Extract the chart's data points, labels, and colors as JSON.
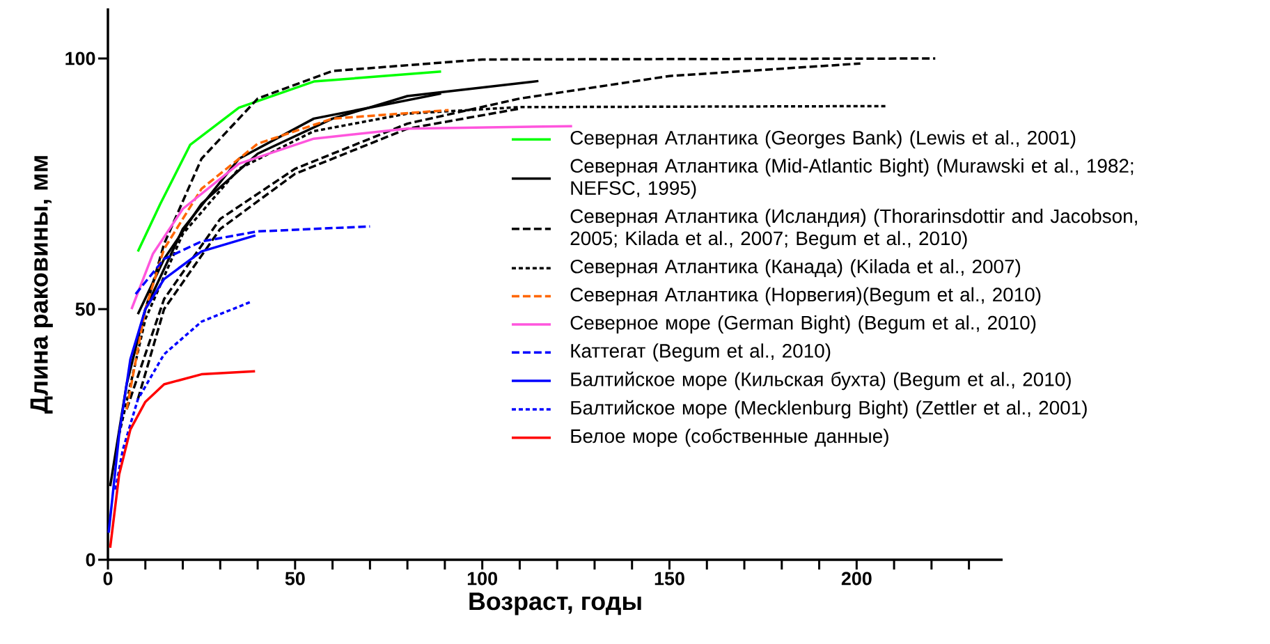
{
  "chart_data": {
    "type": "line",
    "xlabel": "Возраст, годы",
    "ylabel": "Длина раковины, мм",
    "xlim": [
      0,
      239
    ],
    "ylim": [
      0,
      110
    ],
    "xticks": [
      0,
      {
        "value": 10,
        "label": null
      },
      {
        "value": 20,
        "label": null
      },
      {
        "value": 30,
        "label": null
      },
      {
        "value": 40,
        "label": null
      },
      50,
      {
        "value": 60,
        "label": null
      },
      {
        "value": 70,
        "label": null
      },
      {
        "value": 80,
        "label": null
      },
      {
        "value": 90,
        "label": null
      },
      100,
      {
        "value": 110,
        "label": null
      },
      {
        "value": 120,
        "label": null
      },
      {
        "value": 130,
        "label": null
      },
      {
        "value": 140,
        "label": null
      },
      150,
      {
        "value": 160,
        "label": null
      },
      {
        "value": 170,
        "label": null
      },
      {
        "value": 180,
        "label": null
      },
      {
        "value": 190,
        "label": null
      },
      200,
      {
        "value": 210,
        "label": null
      },
      {
        "value": 220,
        "label": null
      },
      {
        "value": 230,
        "label": null
      }
    ],
    "yticks": [
      0,
      50,
      100
    ],
    "grid": false,
    "legend": "right",
    "marker": "none",
    "series": [
      {
        "name": "Северная Атлантика (Georges Bank) (Lewis et al., 2001)",
        "color": "#00ff00",
        "line_style": "solid",
        "x": [
          8,
          14,
          22,
          35,
          55,
          89
        ],
        "values": [
          61.5,
          71,
          82.8,
          90.2,
          95.4,
          97.4
        ]
      },
      {
        "name": "Северная Атлантика (Mid-Atlantic Bight) (Murawski et al., 1982; NEFSC, 1995)",
        "color": "#000000",
        "line_style": "solid",
        "x": [
          8,
          15,
          25,
          40,
          60,
          80,
          115
        ],
        "values": [
          49,
          60,
          71,
          81,
          88,
          92.5,
          95.5
        ]
      },
      {
        "name": "Северная Атлантика (Исландия) (Thorarinsdottir and Jacobson, 2005; Kilada et al., 2007; Begum et al., 2010)",
        "color": "#000000",
        "line_style": "dashed",
        "x": [
          7,
          15,
          25,
          40,
          60,
          100,
          221
        ],
        "values": [
          42,
          63,
          80,
          92,
          97.5,
          99.8,
          100
        ]
      },
      {
        "name": "Северная Атлантика (Канада) (Kilada et al., 2007)",
        "color": "#000000",
        "line_style": "dotted",
        "x": [
          3,
          10,
          20,
          35,
          55,
          80,
          110,
          208
        ],
        "values": [
          25,
          48,
          65,
          78,
          85.5,
          89,
          90.3,
          90.5
        ]
      },
      {
        "name": "Северная Атлантика (Норвегия)(Begum et al., 2010)",
        "color": "#ff6600",
        "line_style": "dashed",
        "x": [
          5,
          10,
          15,
          25,
          40,
          60,
          91
        ],
        "values": [
          30,
          50,
          62,
          74,
          83,
          88,
          89.7
        ]
      },
      {
        "name": "Северное море (German Bight) (Begum et al., 2010)",
        "color": "#ff55dd",
        "line_style": "solid",
        "x": [
          6.3,
          12,
          20,
          35,
          55,
          80,
          124
        ],
        "values": [
          50,
          61,
          70,
          79,
          84,
          86,
          86.5
        ]
      },
      {
        "name": "Каттегат (Begum et al., 2010)",
        "color": "#0000ff",
        "line_style": "dashed",
        "x": [
          7.4,
          15,
          25,
          40,
          70
        ],
        "values": [
          53,
          60,
          63.5,
          65.5,
          66.5
        ]
      },
      {
        "name": "Балтийское море (Кильская бухта) (Begum et al., 2010)",
        "color": "#0000ff",
        "line_style": "solid",
        "x": [
          0.2,
          3,
          6,
          10,
          15,
          25,
          39.4
        ],
        "values": [
          5.4,
          25,
          40,
          50,
          56,
          61.5,
          64.7
        ]
      },
      {
        "name": "Балтийское море (Mecklenburg Bight) (Zettler et al., 2001)",
        "color": "#0000ff",
        "line_style": "dotted",
        "x": [
          2,
          4,
          8,
          15,
          25,
          38.3
        ],
        "values": [
          14,
          22,
          32,
          41,
          47.5,
          51.5
        ]
      },
      {
        "name": "Белое море (собственные данные)",
        "color": "#ff0000",
        "line_style": "solid",
        "x": [
          0.6,
          3,
          6,
          10,
          15,
          25,
          39.3
        ],
        "values": [
          2.4,
          17,
          26,
          31.5,
          35,
          37,
          37.6
        ]
      },
      {
        "color": "#000000",
        "line_style": "solid",
        "x": [
          0.6,
          5,
          10,
          20,
          35,
          55,
          89
        ],
        "values": [
          14.7,
          35,
          50,
          66,
          80,
          88,
          93
        ]
      },
      {
        "color": "#000000",
        "line_style": "dashed",
        "x": [
          5,
          15,
          30,
          50,
          80,
          110,
          150,
          201
        ],
        "values": [
          30,
          52,
          68,
          78,
          87,
          92,
          96.5,
          99
        ]
      },
      {
        "color": "#000000",
        "line_style": "dashed",
        "x": [
          8,
          15,
          30,
          50,
          80,
          110
        ],
        "values": [
          32,
          50,
          66,
          77,
          86,
          90
        ]
      }
    ]
  }
}
